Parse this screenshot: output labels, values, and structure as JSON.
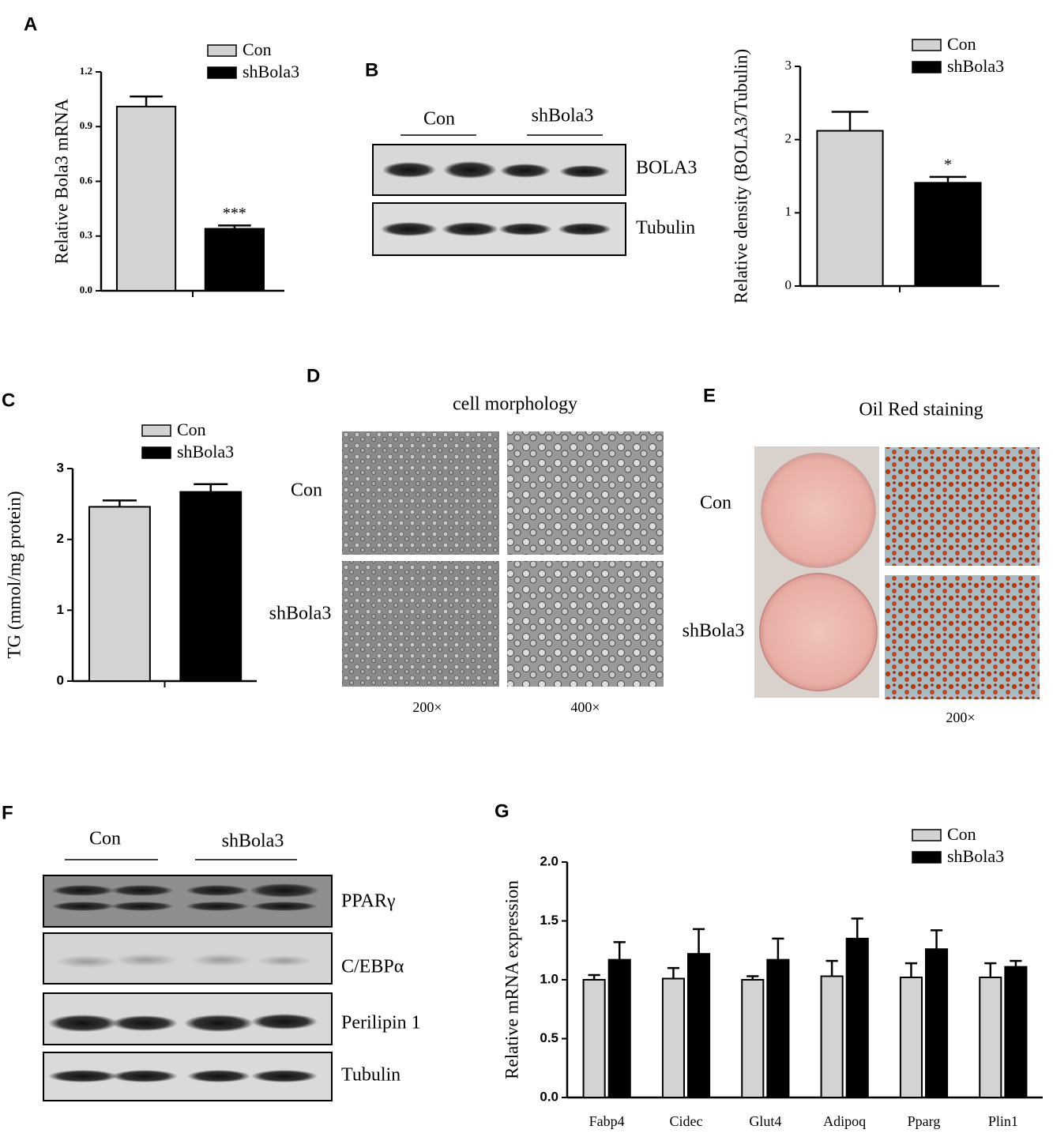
{
  "panel_letters": [
    "A",
    "B",
    "C",
    "D",
    "E",
    "F",
    "G"
  ],
  "blot_b": {
    "groups": [
      "Con",
      "shBola3"
    ],
    "bands": [
      "BOLA3",
      "Tubulin"
    ]
  },
  "morphology_d": {
    "title": "cell morphology",
    "rows": [
      "Con",
      "shBola3"
    ],
    "magnifications": [
      "200×",
      "400×"
    ]
  },
  "oil_red_e": {
    "title": "Oil Red staining",
    "rows": [
      "Con",
      "shBola3"
    ],
    "magnification": "200×"
  },
  "blot_f": {
    "groups": [
      "Con",
      "shBola3"
    ],
    "bands": [
      "PPARγ",
      "C/EBPα",
      "Perilipin 1",
      "Tubulin"
    ]
  },
  "chart_data": [
    {
      "type": "bar",
      "ylabel": "Relative Bola3 mRNA",
      "categories": [
        null
      ],
      "series": [
        {
          "name": "Con",
          "color": "#d3d3d3",
          "values": [
            1.01
          ],
          "errors": [
            0.055
          ]
        },
        {
          "name": "shBola3",
          "color": "#000000",
          "values": [
            0.34
          ],
          "errors": [
            0.018
          ],
          "labels": [
            "***"
          ]
        }
      ],
      "ylim": [
        0,
        1.2
      ],
      "yticks": [
        {
          "value": 0,
          "label": "0.0"
        },
        0.3,
        0.6,
        0.9,
        1.2
      ]
    },
    {
      "type": "bar",
      "ylabel": "Relative density (BOLA3/Tubulin)",
      "categories": [
        null
      ],
      "series": [
        {
          "name": "Con",
          "color": "#d3d3d3",
          "values": [
            2.12
          ],
          "errors": [
            0.26
          ]
        },
        {
          "name": "shBola3",
          "color": "#000000",
          "values": [
            1.41
          ],
          "errors": [
            0.08
          ],
          "labels": [
            "*"
          ]
        }
      ],
      "ylim": [
        0,
        3
      ],
      "yticks": [
        0,
        1,
        2,
        3
      ]
    },
    {
      "type": "bar",
      "ylabel": "TG (mmol/mg protein)",
      "categories": [
        null
      ],
      "series": [
        {
          "name": "Con",
          "color": "#d3d3d3",
          "values": [
            2.46
          ],
          "errors": [
            0.09
          ]
        },
        {
          "name": "shBola3",
          "color": "#000000",
          "values": [
            2.67
          ],
          "errors": [
            0.11
          ]
        }
      ],
      "ylim": [
        0,
        3
      ],
      "yticks": [
        0,
        1,
        2,
        3
      ]
    },
    {
      "type": "bar",
      "ylabel": "Relative mRNA expression",
      "categories": [
        "Fabp4",
        "Cidec",
        "Glut4",
        "Adipoq",
        "Pparg",
        "Plin1"
      ],
      "series": [
        {
          "name": "Con",
          "color": "#d3d3d3",
          "values": [
            1.0,
            1.01,
            1.0,
            1.03,
            1.02,
            1.02
          ],
          "errors": [
            0.04,
            0.09,
            0.03,
            0.13,
            0.12,
            0.12
          ]
        },
        {
          "name": "shBola3",
          "color": "#000000",
          "values": [
            1.17,
            1.22,
            1.17,
            1.35,
            1.26,
            1.11
          ],
          "errors": [
            0.15,
            0.21,
            0.18,
            0.17,
            0.16,
            0.05
          ]
        }
      ],
      "ylim": [
        0,
        2
      ],
      "yticks": [
        {
          "value": 0,
          "label": "0.0"
        },
        0.5,
        {
          "value": 1,
          "label": "1.0"
        },
        1.5,
        {
          "value": 2,
          "label": "2.0"
        }
      ]
    }
  ]
}
